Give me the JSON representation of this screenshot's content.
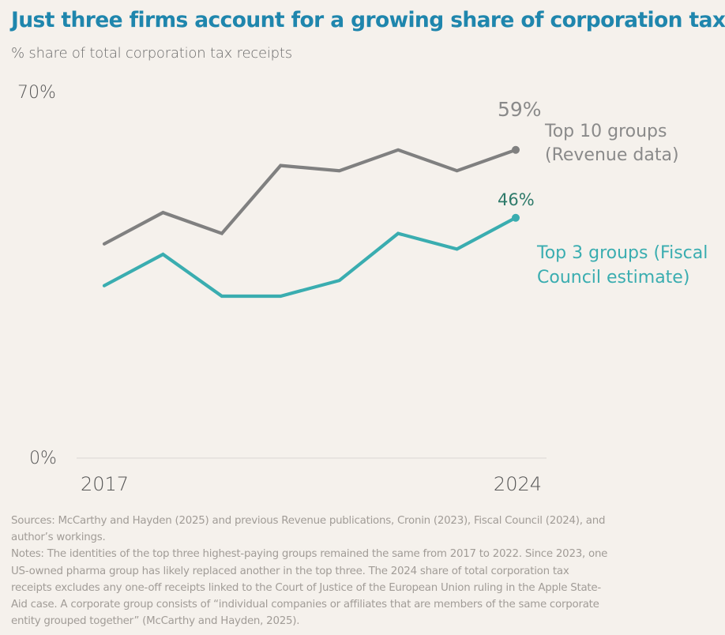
{
  "header": {
    "title": "Just three firms account for a growing share of corporation tax",
    "subtitle": "% share of total corporation tax receipts"
  },
  "colors": {
    "title": "#1f86ad",
    "top10": "#808080",
    "top3": "#3aadb0",
    "top3_label": "#2e7a6a",
    "background": "#f5f1ec"
  },
  "chart_data": {
    "type": "line",
    "title": "Just three firms account for a growing share of corporation tax",
    "subtitle": "% share of total corporation tax receipts",
    "xlabel": "",
    "ylabel": "% share of total corporation tax receipts",
    "x": [
      2017,
      2018,
      2019,
      2020,
      2021,
      2022,
      2023,
      2024
    ],
    "x_tick_labels": [
      "2017",
      "2024"
    ],
    "y_tick_labels": [
      "0%",
      "70%"
    ],
    "ylim": [
      0,
      70
    ],
    "grid": false,
    "legend": "direct-labels-right",
    "series": [
      {
        "name": "Top 10 groups (Revenue data)",
        "label_lines": [
          "Top 10 groups",
          "(Revenue data)"
        ],
        "color": "#808080",
        "values": [
          41,
          47,
          43,
          56,
          55,
          59,
          55,
          59
        ],
        "end_label": "59%"
      },
      {
        "name": "Top 3 groups (Fiscal Council estimate)",
        "label_lines": [
          "Top 3 groups (Fiscal",
          "Council estimate)"
        ],
        "color": "#3aadb0",
        "values": [
          33,
          39,
          31,
          31,
          34,
          43,
          40,
          46
        ],
        "end_label": "46%"
      }
    ]
  },
  "footer": {
    "sources": "Sources: McCarthy and Hayden (2025) and previous Revenue publications, Cronin (2023), Fiscal Council (2024), and author’s workings.",
    "notes": "Notes: The identities of the top three highest-paying groups remained the same from 2017 to 2022. Since 2023, one US-owned pharma group has likely replaced another in the top three. The 2024 share of total corporation tax receipts excludes any one-off receipts linked to the Court of Justice of the European Union ruling in the Apple State-Aid case. A corporate group consists of “individual companies or affiliates that are members of the same corporate entity grouped together” (McCarthy and Hayden, 2025)."
  }
}
